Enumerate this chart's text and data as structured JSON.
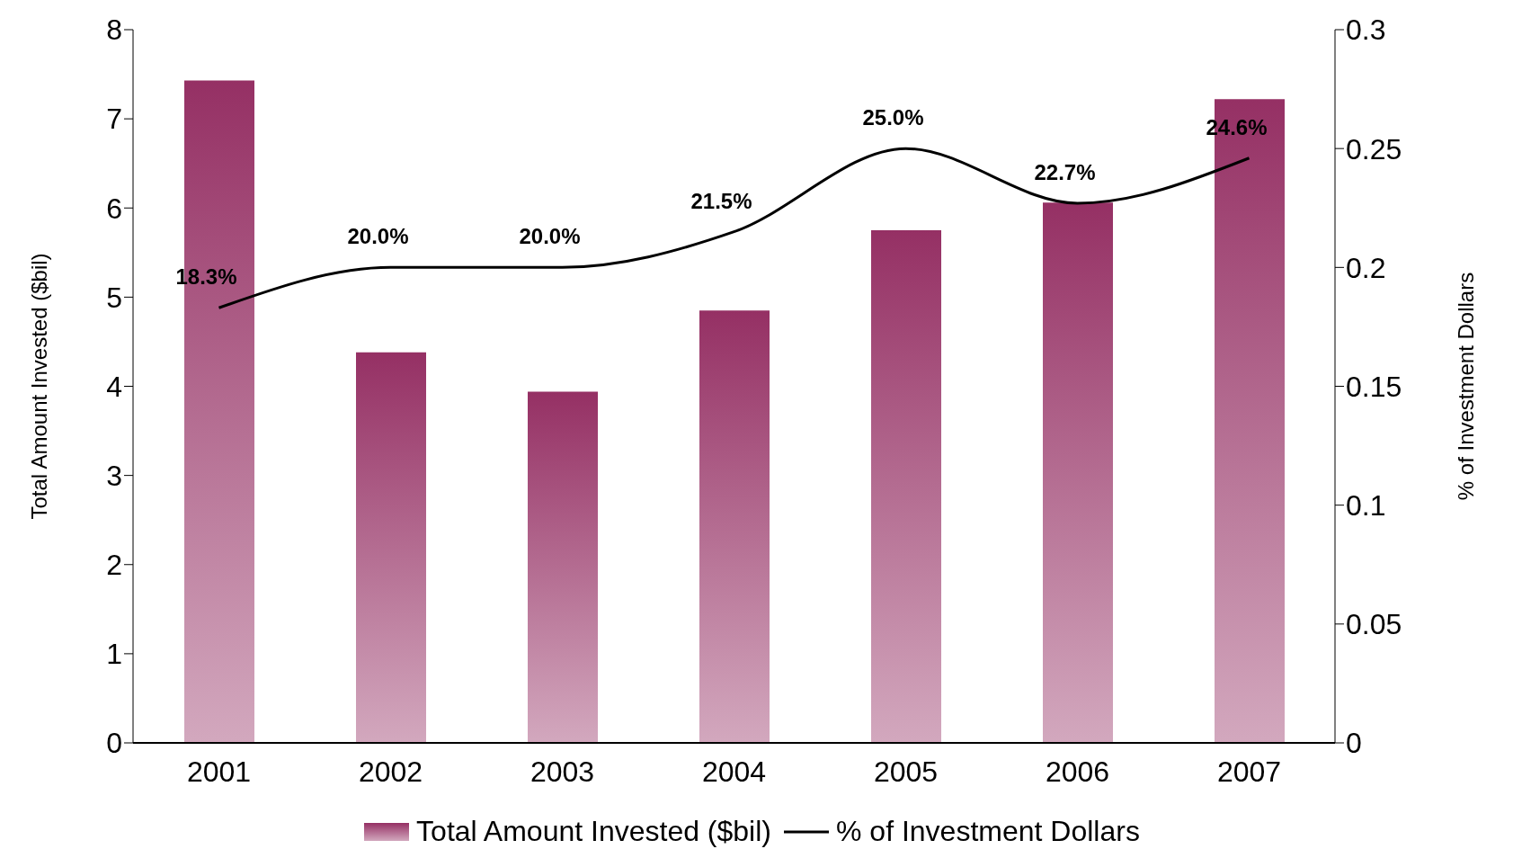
{
  "chart_data": {
    "type": "bar",
    "categories": [
      "2001",
      "2002",
      "2003",
      "2004",
      "2005",
      "2006",
      "2007"
    ],
    "ylabel": "Total Amount Invested ($bil)",
    "y2label": "% of Investment Dollars",
    "series": [
      {
        "name": "Total Amount Invested ($bil)",
        "color": "#953064",
        "values": [
          7.43,
          4.38,
          3.94,
          4.85,
          5.75,
          6.06,
          7.22
        ]
      },
      {
        "name": "% of Investment Dollars",
        "type": "line",
        "axis": "y2",
        "color": "#000000",
        "values": [
          0.183,
          0.2,
          0.2,
          0.215,
          0.25,
          0.227,
          0.246
        ],
        "value_labels": [
          "18.3%",
          "20.0%",
          "20.0%",
          "21.5%",
          "25.0%",
          "22.7%",
          "24.6%"
        ]
      }
    ],
    "ylim": [
      0,
      8
    ],
    "yticks": [
      0,
      1,
      2,
      3,
      4,
      5,
      6,
      7,
      8
    ],
    "y2lim": [
      0,
      0.3
    ],
    "y2ticks": [
      0,
      0.05,
      0.1,
      0.15,
      0.2,
      0.25,
      0.3
    ],
    "grid": false,
    "legend": "bottom",
    "marker": "none",
    "line_style": "solid"
  }
}
